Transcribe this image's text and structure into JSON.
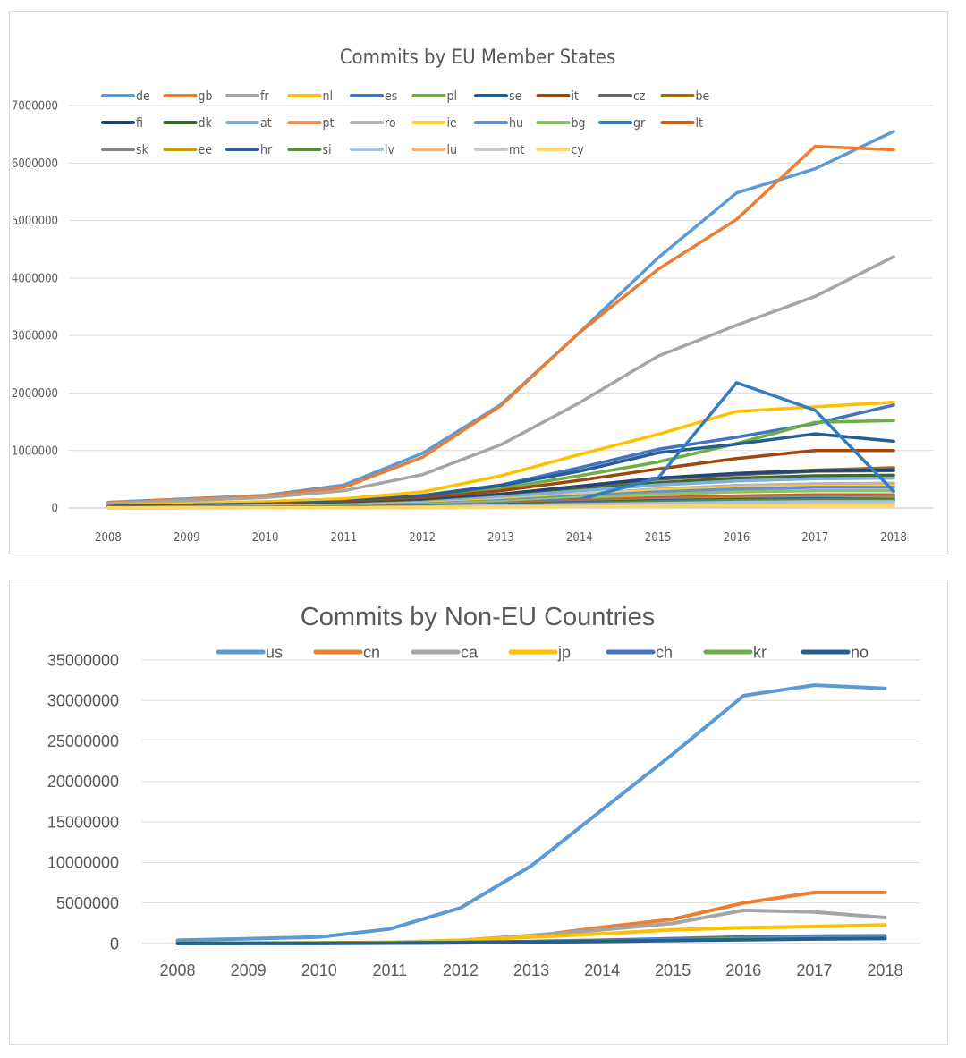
{
  "chart_data": [
    {
      "type": "line",
      "title": "Commits by EU Member States",
      "x": [
        "2008",
        "2009",
        "2010",
        "2011",
        "2012",
        "2013",
        "2014",
        "2015",
        "2016",
        "2017",
        "2018"
      ],
      "ylim": [
        0,
        7000000
      ],
      "yticks": [
        "0",
        "1000000",
        "2000000",
        "3000000",
        "4000000",
        "5000000",
        "6000000",
        "7000000"
      ],
      "grid": true,
      "legend": "top",
      "series": [
        {
          "name": "de",
          "color": "#5b9bd5",
          "values": [
            100000,
            160000,
            220000,
            400000,
            950000,
            1800000,
            3050000,
            4350000,
            5480000,
            5900000,
            6550000
          ]
        },
        {
          "name": "gb",
          "color": "#ed7d31",
          "values": [
            90000,
            150000,
            210000,
            360000,
            880000,
            1780000,
            3050000,
            4150000,
            5020000,
            6290000,
            6230000
          ]
        },
        {
          "name": "fr",
          "color": "#a5a5a5",
          "values": [
            80000,
            130000,
            180000,
            300000,
            580000,
            1100000,
            1830000,
            2640000,
            3180000,
            3680000,
            4370000
          ]
        },
        {
          "name": "nl",
          "color": "#ffc000",
          "values": [
            50000,
            80000,
            110000,
            160000,
            280000,
            560000,
            930000,
            1280000,
            1680000,
            1760000,
            1840000
          ]
        },
        {
          "name": "es",
          "color": "#4472c4",
          "values": [
            30000,
            50000,
            70000,
            110000,
            220000,
            400000,
            700000,
            1020000,
            1230000,
            1470000,
            1790000
          ]
        },
        {
          "name": "pl",
          "color": "#70ad47",
          "values": [
            20000,
            40000,
            60000,
            90000,
            180000,
            340000,
            560000,
            800000,
            1120000,
            1490000,
            1520000
          ]
        },
        {
          "name": "se",
          "color": "#255e91",
          "values": [
            30000,
            50000,
            70000,
            110000,
            210000,
            390000,
            640000,
            960000,
            1110000,
            1290000,
            1160000
          ]
        },
        {
          "name": "it",
          "color": "#9e480e",
          "values": [
            20000,
            40000,
            60000,
            90000,
            170000,
            300000,
            480000,
            680000,
            860000,
            1000000,
            1000000
          ]
        },
        {
          "name": "cz",
          "color": "#636363",
          "values": [
            15000,
            30000,
            45000,
            70000,
            130000,
            240000,
            370000,
            500000,
            580000,
            640000,
            650000
          ]
        },
        {
          "name": "be",
          "color": "#997300",
          "values": [
            15000,
            30000,
            45000,
            70000,
            130000,
            240000,
            380000,
            520000,
            600000,
            660000,
            700000
          ]
        },
        {
          "name": "fi",
          "color": "#264478",
          "values": [
            15000,
            30000,
            45000,
            70000,
            130000,
            240000,
            380000,
            520000,
            600000,
            650000,
            660000
          ]
        },
        {
          "name": "dk",
          "color": "#43682b",
          "values": [
            12000,
            25000,
            40000,
            60000,
            110000,
            200000,
            320000,
            440000,
            520000,
            560000,
            570000
          ]
        },
        {
          "name": "at",
          "color": "#7cafdd",
          "values": [
            10000,
            20000,
            35000,
            55000,
            100000,
            190000,
            300000,
            400000,
            470000,
            510000,
            520000
          ]
        },
        {
          "name": "pt",
          "color": "#f1975a",
          "values": [
            8000,
            15000,
            25000,
            40000,
            80000,
            150000,
            240000,
            330000,
            390000,
            420000,
            430000
          ]
        },
        {
          "name": "ro",
          "color": "#b7b7b7",
          "values": [
            8000,
            15000,
            25000,
            40000,
            80000,
            150000,
            240000,
            330000,
            390000,
            420000,
            420000
          ]
        },
        {
          "name": "ie",
          "color": "#ffcd33",
          "values": [
            8000,
            15000,
            25000,
            40000,
            80000,
            150000,
            230000,
            310000,
            360000,
            380000,
            380000
          ]
        },
        {
          "name": "hu",
          "color": "#698ed0",
          "values": [
            6000,
            12000,
            20000,
            35000,
            70000,
            130000,
            210000,
            280000,
            330000,
            360000,
            360000
          ]
        },
        {
          "name": "bg",
          "color": "#8cc168",
          "values": [
            5000,
            10000,
            18000,
            30000,
            60000,
            110000,
            180000,
            240000,
            280000,
            300000,
            300000
          ]
        },
        {
          "name": "gr",
          "color": "#327dc2",
          "values": [
            5000,
            8000,
            12000,
            20000,
            40000,
            80000,
            150000,
            520000,
            2180000,
            1700000,
            290000
          ]
        },
        {
          "name": "lt",
          "color": "#d26012",
          "values": [
            4000,
            8000,
            12000,
            20000,
            40000,
            80000,
            130000,
            180000,
            210000,
            230000,
            230000
          ]
        },
        {
          "name": "sk",
          "color": "#848484",
          "values": [
            4000,
            8000,
            12000,
            20000,
            40000,
            70000,
            110000,
            150000,
            180000,
            200000,
            200000
          ]
        },
        {
          "name": "ee",
          "color": "#cc9a00",
          "values": [
            3000,
            6000,
            10000,
            16000,
            30000,
            60000,
            100000,
            140000,
            160000,
            170000,
            170000
          ]
        },
        {
          "name": "hr",
          "color": "#335aa1",
          "values": [
            3000,
            6000,
            10000,
            16000,
            30000,
            60000,
            100000,
            130000,
            150000,
            160000,
            150000
          ]
        },
        {
          "name": "si",
          "color": "#5a8a39",
          "values": [
            2000,
            5000,
            8000,
            12000,
            25000,
            50000,
            80000,
            110000,
            130000,
            140000,
            140000
          ]
        },
        {
          "name": "lv",
          "color": "#a3c4e8",
          "values": [
            2000,
            4000,
            6000,
            10000,
            20000,
            40000,
            60000,
            80000,
            100000,
            110000,
            110000
          ]
        },
        {
          "name": "lu",
          "color": "#f4b183",
          "values": [
            1000,
            2000,
            3000,
            5000,
            10000,
            20000,
            30000,
            40000,
            50000,
            55000,
            55000
          ]
        },
        {
          "name": "mt",
          "color": "#c9c9c9",
          "values": [
            1000,
            2000,
            3000,
            5000,
            8000,
            15000,
            25000,
            35000,
            40000,
            45000,
            45000
          ]
        },
        {
          "name": "cy",
          "color": "#ffd966",
          "values": [
            1000,
            2000,
            3000,
            5000,
            8000,
            15000,
            25000,
            30000,
            35000,
            40000,
            40000
          ]
        }
      ]
    },
    {
      "type": "line",
      "title": "Commits by Non-EU Countries",
      "x": [
        "2008",
        "2009",
        "2010",
        "2011",
        "2012",
        "2013",
        "2014",
        "2015",
        "2016",
        "2017",
        "2018"
      ],
      "ylim": [
        0,
        35000000
      ],
      "yticks": [
        "0",
        "5000000",
        "10000000",
        "15000000",
        "20000000",
        "25000000",
        "30000000",
        "35000000"
      ],
      "grid": true,
      "legend": "top",
      "series": [
        {
          "name": "us",
          "color": "#5b9bd5",
          "values": [
            400000,
            600000,
            800000,
            1800000,
            4400000,
            9600000,
            16500000,
            23400000,
            30600000,
            31900000,
            31500000
          ]
        },
        {
          "name": "cn",
          "color": "#ed7d31",
          "values": [
            20000,
            40000,
            60000,
            120000,
            400000,
            900000,
            2000000,
            3000000,
            5000000,
            6300000,
            6300000
          ]
        },
        {
          "name": "ca",
          "color": "#a5a5a5",
          "values": [
            20000,
            40000,
            60000,
            120000,
            380000,
            1000000,
            1700000,
            2500000,
            4100000,
            3900000,
            3200000
          ]
        },
        {
          "name": "jp",
          "color": "#ffc000",
          "values": [
            30000,
            50000,
            80000,
            150000,
            400000,
            800000,
            1200000,
            1700000,
            1950000,
            2100000,
            2300000
          ]
        },
        {
          "name": "ch",
          "color": "#4472c4",
          "values": [
            10000,
            20000,
            30000,
            50000,
            120000,
            250000,
            400000,
            600000,
            800000,
            900000,
            950000
          ]
        },
        {
          "name": "kr",
          "color": "#70ad47",
          "values": [
            10000,
            20000,
            30000,
            50000,
            110000,
            200000,
            320000,
            450000,
            570000,
            680000,
            720000
          ]
        },
        {
          "name": "no",
          "color": "#255e91",
          "values": [
            10000,
            20000,
            30000,
            50000,
            100000,
            180000,
            280000,
            380000,
            480000,
            560000,
            620000
          ]
        }
      ]
    }
  ]
}
